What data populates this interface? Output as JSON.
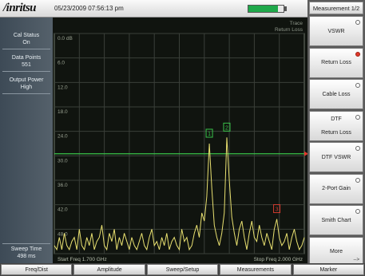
{
  "header": {
    "brand": "/inritsu",
    "datetime": "05/23/2009 07:56:13 pm",
    "battery_level": 0.85
  },
  "status_panel": [
    {
      "label": "Cal Status",
      "value": "On"
    },
    {
      "label": "Data Points",
      "value": "551"
    },
    {
      "label": "Output Power",
      "value": "High"
    },
    {
      "label": "Sweep Time",
      "value": "498 ms"
    }
  ],
  "plot": {
    "trace_label": "Trace",
    "trace_type": "Return Loss",
    "start_freq": "Start Freq 1.700 GHz",
    "stop_freq": "Stop Freq 2.000 GHz",
    "limit_line_color": "#39c24a",
    "trace_color": "#e8e070",
    "grid_color": "#3a3f39",
    "marker_color_green": "#39c24a",
    "marker_color_red": "#d23b2f"
  },
  "chart_data": {
    "type": "line",
    "x_range": [
      1.7,
      2.0
    ],
    "y_range": [
      0,
      54
    ],
    "y_direction": "down",
    "ytick_labels": [
      "0.0 dB",
      "6.0",
      "12.0",
      "18.0",
      "24.0",
      "30.0",
      "36.0",
      "42.0",
      "48.0"
    ],
    "limit_line_y": 29.5,
    "markers": [
      {
        "label": "1",
        "x": 1.886,
        "y": 27.0,
        "color": "green"
      },
      {
        "label": "2",
        "x": 1.907,
        "y": 25.5,
        "color": "green"
      },
      {
        "label": "3",
        "x": 1.967,
        "y": 45.5,
        "color": "red"
      }
    ],
    "series": [
      {
        "x": [
          1.7,
          1.703,
          1.706,
          1.709,
          1.712,
          1.715,
          1.718,
          1.721,
          1.724,
          1.727,
          1.73,
          1.733,
          1.736,
          1.739,
          1.742,
          1.745,
          1.748,
          1.751,
          1.754,
          1.757,
          1.76,
          1.763,
          1.766,
          1.769,
          1.772,
          1.775,
          1.778,
          1.781,
          1.784,
          1.787,
          1.79,
          1.793,
          1.796,
          1.799,
          1.802,
          1.805,
          1.808,
          1.811,
          1.814,
          1.817,
          1.82,
          1.823,
          1.826,
          1.829,
          1.832,
          1.835,
          1.838,
          1.841,
          1.844,
          1.847,
          1.85,
          1.853,
          1.856,
          1.859,
          1.862,
          1.865,
          1.868,
          1.871,
          1.874,
          1.877,
          1.88,
          1.883,
          1.886,
          1.889,
          1.892,
          1.895,
          1.898,
          1.901,
          1.904,
          1.907,
          1.91,
          1.913,
          1.916,
          1.919,
          1.922,
          1.925,
          1.928,
          1.931,
          1.934,
          1.937,
          1.94,
          1.943,
          1.946,
          1.949,
          1.952,
          1.955,
          1.958,
          1.961,
          1.964,
          1.967,
          1.97,
          1.973,
          1.976,
          1.979,
          1.982,
          1.985,
          1.988,
          1.991,
          1.994,
          1.997,
          2.0
        ],
        "y": [
          52,
          53,
          50,
          53,
          49,
          52,
          53,
          51,
          50,
          53,
          48,
          52,
          53,
          50,
          52,
          49,
          53,
          51,
          50,
          47,
          52,
          53,
          49,
          51,
          48,
          53,
          50,
          52,
          49,
          51,
          53,
          50,
          52,
          53,
          51,
          49,
          52,
          53,
          50,
          48,
          52,
          51,
          53,
          50,
          52,
          49,
          53,
          51,
          50,
          52,
          53,
          48,
          51,
          50,
          53,
          52,
          49,
          47,
          50,
          44,
          46,
          40,
          27,
          38,
          47,
          50,
          52,
          49,
          44,
          25.5,
          36,
          45,
          49,
          52,
          48,
          46,
          50,
          53,
          49,
          46,
          50,
          51,
          47,
          50,
          52,
          49,
          51,
          53,
          48,
          45.5,
          50,
          52,
          51,
          49,
          53,
          50,
          48,
          51,
          53,
          52,
          50
        ]
      }
    ]
  },
  "right_menu": {
    "title": "Measurement 1/2",
    "keys": [
      {
        "line1": "VSWR",
        "line2": "",
        "indicator": "off"
      },
      {
        "line1": "Return Loss",
        "line2": "",
        "indicator": "on"
      },
      {
        "line1": "Cable Loss",
        "line2": "",
        "indicator": "off"
      },
      {
        "line1": "DTF",
        "line2": "Return Loss",
        "indicator": "off"
      },
      {
        "line1": "DTF VSWR",
        "line2": "",
        "indicator": "off"
      },
      {
        "line1": "2-Port Gain",
        "line2": "",
        "indicator": "off"
      },
      {
        "line1": "Smith Chart",
        "line2": "",
        "indicator": "off"
      },
      {
        "line1": "More",
        "line2": "",
        "indicator": "none"
      }
    ],
    "more_arrow": "-->"
  },
  "bottom_tabs": [
    "Freq/Dist",
    "Amplitude",
    "Sweep/Setup",
    "Measurements",
    "Marker"
  ]
}
